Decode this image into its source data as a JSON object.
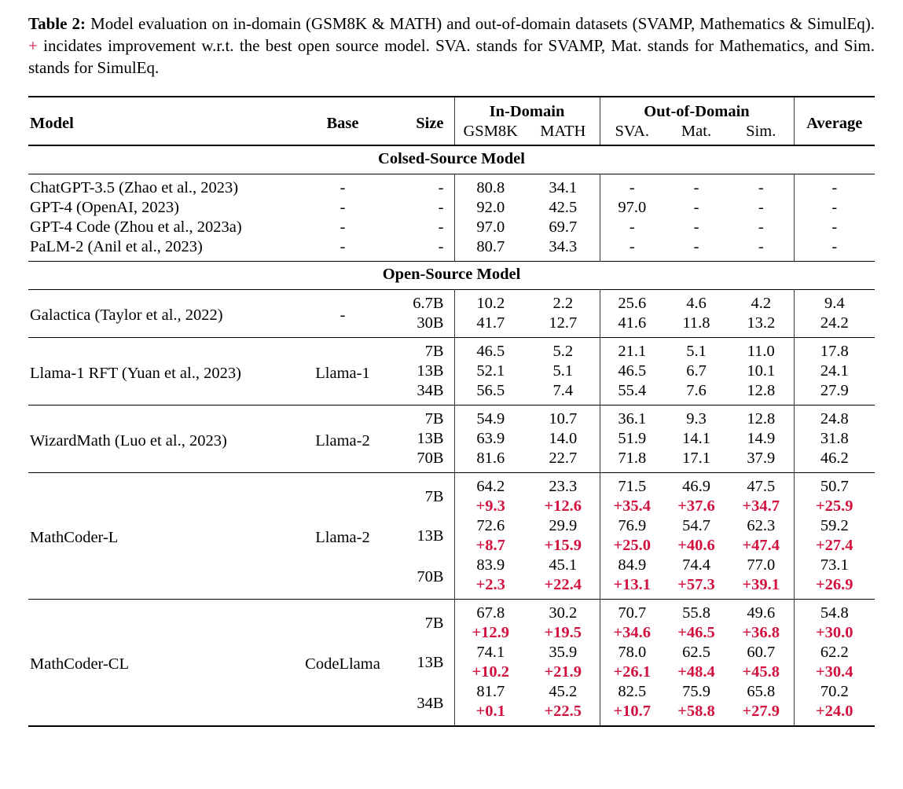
{
  "caption": {
    "label": "Table 2:",
    "text_before_plus": "Model evaluation on in-domain (GSM8K & MATH) and out-of-domain datasets (SVAMP, Mathematics & SimulEq).",
    "plus_symbol": "+",
    "text_after_plus": "incidates improvement w.r.t. the best open source model. SVA. stands for SVAMP, Mat. stands for Mathematics, and Sim. stands for SimulEq."
  },
  "colors": {
    "accent_red": "#d2123e",
    "rule_black": "#000000"
  },
  "table": {
    "header": {
      "model": "Model",
      "base": "Base",
      "size": "Size",
      "in_domain": "In-Domain",
      "out_of_domain": "Out-of-Domain",
      "average": "Average",
      "in_domain_cols": [
        "GSM8K",
        "MATH"
      ],
      "out_of_domain_cols": [
        "SVA.",
        "Mat.",
        "Sim."
      ]
    },
    "sections": [
      {
        "title": "Colsed-Source Model",
        "split_groups": false,
        "groups": [
          {
            "model": "ChatGPT-3.5 (Zhao et al., 2023)",
            "base": "-",
            "rows": [
              {
                "size": "-",
                "values": [
                  "80.8",
                  "34.1",
                  "-",
                  "-",
                  "-",
                  "-"
                ]
              }
            ]
          },
          {
            "model": "GPT-4 (OpenAI, 2023)",
            "base": "-",
            "rows": [
              {
                "size": "-",
                "values": [
                  "92.0",
                  "42.5",
                  "97.0",
                  "-",
                  "-",
                  "-"
                ]
              }
            ]
          },
          {
            "model": "GPT-4 Code (Zhou et al., 2023a)",
            "base": "-",
            "rows": [
              {
                "size": "-",
                "values": [
                  "97.0",
                  "69.7",
                  "-",
                  "-",
                  "-",
                  "-"
                ]
              }
            ]
          },
          {
            "model": "PaLM-2 (Anil et al., 2023)",
            "base": "-",
            "rows": [
              {
                "size": "-",
                "values": [
                  "80.7",
                  "34.3",
                  "-",
                  "-",
                  "-",
                  "-"
                ]
              }
            ]
          }
        ]
      },
      {
        "title": "Open-Source Model",
        "split_groups": true,
        "groups": [
          {
            "model": "Galactica (Taylor et al., 2022)",
            "base": "-",
            "rows": [
              {
                "size": "6.7B",
                "values": [
                  "10.2",
                  "2.2",
                  "25.6",
                  "4.6",
                  "4.2",
                  "9.4"
                ]
              },
              {
                "size": "30B",
                "values": [
                  "41.7",
                  "12.7",
                  "41.6",
                  "11.8",
                  "13.2",
                  "24.2"
                ]
              }
            ]
          },
          {
            "model": "Llama-1 RFT (Yuan et al., 2023)",
            "base": "Llama-1",
            "rows": [
              {
                "size": "7B",
                "values": [
                  "46.5",
                  "5.2",
                  "21.1",
                  "5.1",
                  "11.0",
                  "17.8"
                ]
              },
              {
                "size": "13B",
                "values": [
                  "52.1",
                  "5.1",
                  "46.5",
                  "6.7",
                  "10.1",
                  "24.1"
                ]
              },
              {
                "size": "34B",
                "values": [
                  "56.5",
                  "7.4",
                  "55.4",
                  "7.6",
                  "12.8",
                  "27.9"
                ]
              }
            ]
          },
          {
            "model": "WizardMath (Luo et al., 2023)",
            "base": "Llama-2",
            "rows": [
              {
                "size": "7B",
                "values": [
                  "54.9",
                  "10.7",
                  "36.1",
                  "9.3",
                  "12.8",
                  "24.8"
                ]
              },
              {
                "size": "13B",
                "values": [
                  "63.9",
                  "14.0",
                  "51.9",
                  "14.1",
                  "14.9",
                  "31.8"
                ]
              },
              {
                "size": "70B",
                "values": [
                  "81.6",
                  "22.7",
                  "71.8",
                  "17.1",
                  "37.9",
                  "46.2"
                ]
              }
            ]
          },
          {
            "model": "MathCoder-L",
            "base": "Llama-2",
            "rows": [
              {
                "size": "7B",
                "values": [
                  "64.2",
                  "23.3",
                  "71.5",
                  "46.9",
                  "47.5",
                  "50.7"
                ],
                "delta": [
                  "+9.3",
                  "+12.6",
                  "+35.4",
                  "+37.6",
                  "+34.7",
                  "+25.9"
                ]
              },
              {
                "size": "13B",
                "values": [
                  "72.6",
                  "29.9",
                  "76.9",
                  "54.7",
                  "62.3",
                  "59.2"
                ],
                "delta": [
                  "+8.7",
                  "+15.9",
                  "+25.0",
                  "+40.6",
                  "+47.4",
                  "+27.4"
                ]
              },
              {
                "size": "70B",
                "values": [
                  "83.9",
                  "45.1",
                  "84.9",
                  "74.4",
                  "77.0",
                  "73.1"
                ],
                "delta": [
                  "+2.3",
                  "+22.4",
                  "+13.1",
                  "+57.3",
                  "+39.1",
                  "+26.9"
                ]
              }
            ]
          },
          {
            "model": "MathCoder-CL",
            "base": "CodeLlama",
            "rows": [
              {
                "size": "7B",
                "values": [
                  "67.8",
                  "30.2",
                  "70.7",
                  "55.8",
                  "49.6",
                  "54.8"
                ],
                "delta": [
                  "+12.9",
                  "+19.5",
                  "+34.6",
                  "+46.5",
                  "+36.8",
                  "+30.0"
                ]
              },
              {
                "size": "13B",
                "values": [
                  "74.1",
                  "35.9",
                  "78.0",
                  "62.5",
                  "60.7",
                  "62.2"
                ],
                "delta": [
                  "+10.2",
                  "+21.9",
                  "+26.1",
                  "+48.4",
                  "+45.8",
                  "+30.4"
                ]
              },
              {
                "size": "34B",
                "values": [
                  "81.7",
                  "45.2",
                  "82.5",
                  "75.9",
                  "65.8",
                  "70.2"
                ],
                "delta": [
                  "+0.1",
                  "+22.5",
                  "+10.7",
                  "+58.8",
                  "+27.9",
                  "+24.0"
                ]
              }
            ]
          }
        ]
      }
    ]
  }
}
